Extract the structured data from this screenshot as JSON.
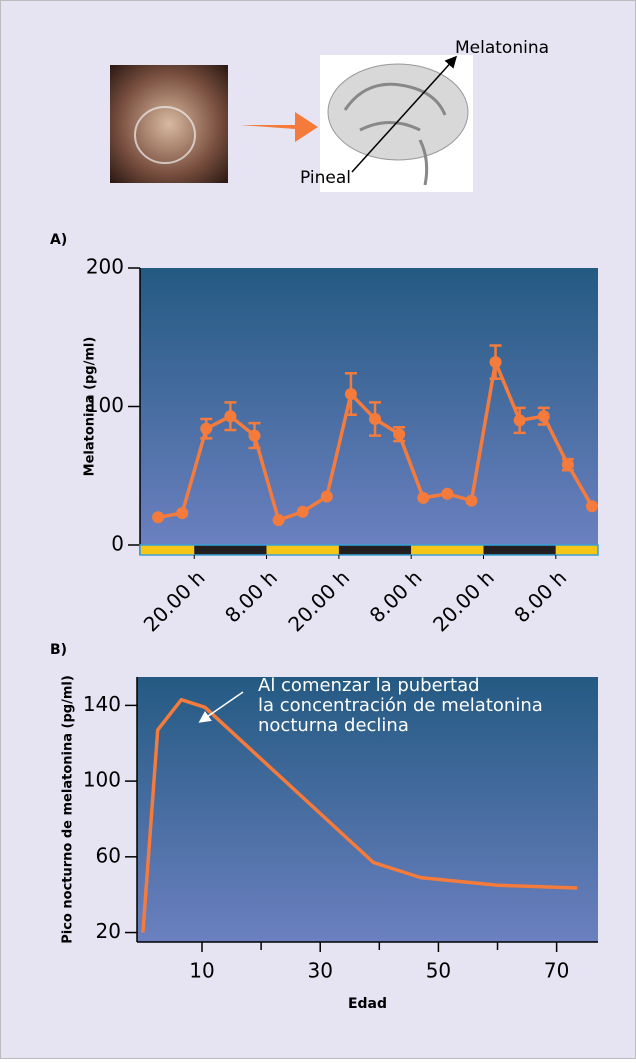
{
  "header": {
    "product_label": "Melatonina",
    "gland_label": "Pineal"
  },
  "chart_data": [
    {
      "type": "line",
      "panel_label": "A)",
      "y_label": "Melatonina (pg/ml)",
      "x": [
        14,
        18,
        22,
        26,
        30,
        34,
        38,
        42,
        46,
        50,
        54,
        58,
        62,
        66,
        70,
        74,
        78,
        82,
        86
      ],
      "values": [
        20,
        23,
        84,
        93,
        79,
        18,
        24,
        35,
        109,
        91,
        80,
        34,
        37,
        32,
        132,
        90,
        93,
        58,
        28
      ],
      "errors": [
        null,
        null,
        7,
        10,
        9,
        null,
        null,
        null,
        15,
        12,
        5,
        null,
        null,
        null,
        12,
        9,
        6,
        4,
        null
      ],
      "color": "#f47b3b",
      "markers": true,
      "xlim": [
        11,
        87
      ],
      "xticks": [
        {
          "value": 20,
          "label": "20.00 h"
        },
        {
          "value": 32,
          "label": "8.00 h"
        },
        {
          "value": 44,
          "label": "20.00 h"
        },
        {
          "value": 56,
          "label": "8.00 h"
        },
        {
          "value": 68,
          "label": "20.00 h"
        },
        {
          "value": 80,
          "label": "8.00 h"
        }
      ],
      "ylim": [
        0,
        200
      ],
      "yticks": [
        0,
        100,
        200
      ],
      "light_dark_bar": {
        "day_color": "#f5c518",
        "night_color": "#231f20"
      }
    },
    {
      "type": "line",
      "panel_label": "B)",
      "y_label": "Pico nocturno de melatonina (pg/ml)",
      "x_label": "Edad",
      "x": [
        0,
        2.5,
        6.5,
        10.5,
        39,
        47,
        60,
        73.5
      ],
      "values": [
        20,
        127,
        143,
        139,
        57,
        49,
        45,
        43.5
      ],
      "color": "#f47b3b",
      "markers": false,
      "xlim": [
        -1,
        77
      ],
      "xticks": [
        10,
        30,
        50,
        70
      ],
      "xminor_ticks": [
        20,
        40,
        60
      ],
      "ylim": [
        15,
        155
      ],
      "yticks": [
        20,
        60,
        100,
        140
      ],
      "annotation": [
        "Al comenzar la pubertad",
        "la concentración de melatonina",
        "nocturna declina"
      ]
    }
  ]
}
